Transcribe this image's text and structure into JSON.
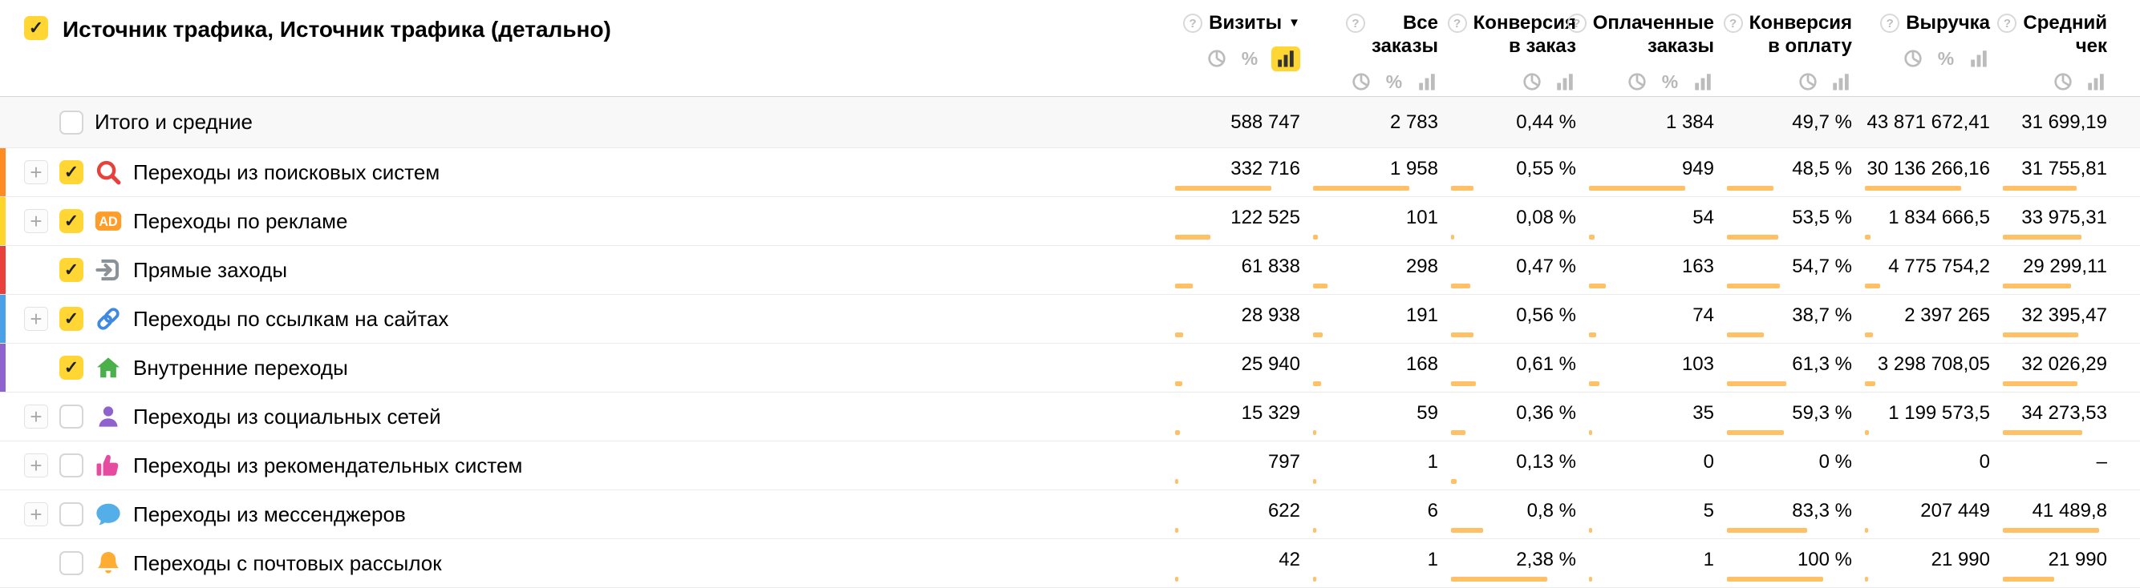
{
  "colors": {
    "accent_yellow": "#ffd633",
    "bar_orange": "#ffc066",
    "total_row_bg": "#f8f8f8"
  },
  "table": {
    "select_all_checked": true,
    "title": "Источник трафика, Источник трафика (детально)",
    "columns": [
      {
        "label": "Визиты",
        "sort": "desc",
        "modes": [
          "pie",
          "percent",
          "bars"
        ],
        "selected_mode": "bars"
      },
      {
        "label": "Все\nзаказы",
        "sort": null,
        "modes": [
          "pie",
          "percent",
          "bars"
        ],
        "selected_mode": null
      },
      {
        "label": "Конверсия\nв заказ",
        "sort": null,
        "modes": [
          "pie",
          "bars"
        ],
        "selected_mode": null
      },
      {
        "label": "Оплаченные\nзаказы",
        "sort": null,
        "modes": [
          "pie",
          "percent",
          "bars"
        ],
        "selected_mode": null
      },
      {
        "label": "Конверсия\nв оплату",
        "sort": null,
        "modes": [
          "pie",
          "bars"
        ],
        "selected_mode": null
      },
      {
        "label": "Выручка",
        "sort": null,
        "modes": [
          "pie",
          "percent",
          "bars"
        ],
        "selected_mode": null
      },
      {
        "label": "Средний\nчек",
        "sort": null,
        "modes": [
          "pie",
          "bars"
        ],
        "selected_mode": null
      }
    ],
    "total_row": {
      "label": "Итого и средние",
      "checked": false,
      "values": [
        "588 747",
        "2 783",
        "0,44 %",
        "1 384",
        "49,7 %",
        "43 871 672,41",
        "31 699,19"
      ]
    },
    "rows": [
      {
        "label": "Переходы из поисковых систем",
        "icon": "search-icon",
        "icon_color": "#e8413c",
        "stripe_color": "#ff8b22",
        "expandable": true,
        "checked": true,
        "values": [
          "332 716",
          "1 958",
          "0,55 %",
          "949",
          "48,5 %",
          "30 136 266,16",
          "31 755,81"
        ],
        "nums": [
          332716,
          1958,
          0.55,
          949,
          48.5,
          30136266.16,
          31755.81
        ]
      },
      {
        "label": "Переходы по рекламе",
        "icon": "ad-icon",
        "icon_color": "#ff9d2b",
        "stripe_color": "#ffd42b",
        "expandable": true,
        "checked": true,
        "values": [
          "122 525",
          "101",
          "0,08 %",
          "54",
          "53,5 %",
          "1 834 666,5",
          "33 975,31"
        ],
        "nums": [
          122525,
          101,
          0.08,
          54,
          53.5,
          1834666.5,
          33975.31
        ]
      },
      {
        "label": "Прямые заходы",
        "icon": "direct-icon",
        "icon_color": "#8b9399",
        "stripe_color": "#e8413c",
        "expandable": false,
        "checked": true,
        "values": [
          "61 838",
          "298",
          "0,47 %",
          "163",
          "54,7 %",
          "4 775 754,2",
          "29 299,11"
        ],
        "nums": [
          61838,
          298,
          0.47,
          163,
          54.7,
          4775754.2,
          29299.11
        ]
      },
      {
        "label": "Переходы по ссылкам на сайтах",
        "icon": "link-icon",
        "icon_color": "#3f8ae0",
        "stripe_color": "#4ba1e8",
        "expandable": true,
        "checked": true,
        "values": [
          "28 938",
          "191",
          "0,56 %",
          "74",
          "38,7 %",
          "2 397 265",
          "32 395,47"
        ],
        "nums": [
          28938,
          191,
          0.56,
          74,
          38.7,
          2397265,
          32395.47
        ]
      },
      {
        "label": "Внутренние переходы",
        "icon": "home-icon",
        "icon_color": "#49b04a",
        "stripe_color": "#8f63ce",
        "expandable": false,
        "checked": true,
        "values": [
          "25 940",
          "168",
          "0,61 %",
          "103",
          "61,3 %",
          "3 298 708,05",
          "32 026,29"
        ],
        "nums": [
          25940,
          168,
          0.61,
          103,
          61.3,
          3298708.05,
          32026.29
        ]
      },
      {
        "label": "Переходы из социальных сетей",
        "icon": "social-icon",
        "icon_color": "#8f63ce",
        "stripe_color": null,
        "expandable": true,
        "checked": false,
        "values": [
          "15 329",
          "59",
          "0,36 %",
          "35",
          "59,3 %",
          "1 199 573,5",
          "34 273,53"
        ],
        "nums": [
          15329,
          59,
          0.36,
          35,
          59.3,
          1199573.5,
          34273.53
        ]
      },
      {
        "label": "Переходы из рекомендательных систем",
        "icon": "thumbs-icon",
        "icon_color": "#e54ca0",
        "stripe_color": null,
        "expandable": true,
        "checked": false,
        "values": [
          "797",
          "1",
          "0,13 %",
          "0",
          "0 %",
          "0",
          "–"
        ],
        "nums": [
          797,
          1,
          0.13,
          0,
          0,
          0,
          null
        ]
      },
      {
        "label": "Переходы из мессенджеров",
        "icon": "messenger-icon",
        "icon_color": "#54aee8",
        "stripe_color": null,
        "expandable": true,
        "checked": false,
        "values": [
          "622",
          "6",
          "0,8 %",
          "5",
          "83,3 %",
          "207 449",
          "41 489,8"
        ],
        "nums": [
          622,
          6,
          0.8,
          5,
          83.3,
          207449,
          41489.8
        ]
      },
      {
        "label": "Переходы с почтовых рассылок",
        "icon": "email-icon",
        "icon_color": "#ffac33",
        "stripe_color": null,
        "expandable": false,
        "checked": false,
        "values": [
          "42",
          "1",
          "2,38 %",
          "1",
          "100 %",
          "21 990",
          "21 990"
        ],
        "nums": [
          42,
          1,
          2.38,
          1,
          100,
          21990,
          21990
        ]
      }
    ]
  }
}
